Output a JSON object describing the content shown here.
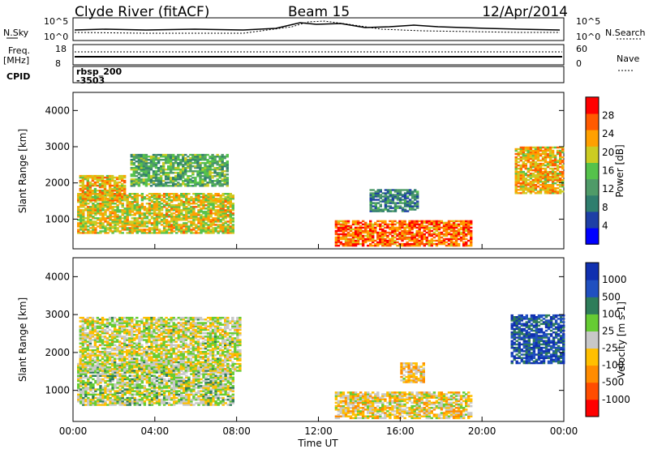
{
  "header": {
    "station": "Clyde River (fitACF)",
    "beam": "Beam 15",
    "date": "12/Apr/2014"
  },
  "params": {
    "nsky_label": "N.Sky",
    "nsearch_label": "N.Search",
    "nsky_ticks": [
      "10^5",
      "10^0"
    ],
    "nsearch_ticks": [
      "10^5",
      "10^0"
    ],
    "freq_label_top": "Freq.",
    "freq_label_bottom": "[MHz]",
    "freq_ticks": [
      "18",
      "8"
    ],
    "nave_label": "Nave",
    "nave_ticks": [
      "60",
      "0"
    ],
    "cpid_label": "CPID",
    "cpid_name": "rbsp_200",
    "cpid_number": "-3503"
  },
  "colors": {
    "power": [
      "#0000ff",
      "#1e3fa6",
      "#2f7e6e",
      "#4f9b68",
      "#55c24b",
      "#cccc22",
      "#ffa000",
      "#ff5a00",
      "#ff0000"
    ],
    "velocity": [
      "#ff0000",
      "#ff4d00",
      "#ff8c00",
      "#ffbf00",
      "#c8c8c8",
      "#66cc33",
      "#2e7d5a",
      "#2050c0",
      "#1030b0"
    ]
  },
  "chart_data": [
    {
      "type": "heatmap",
      "title": "Power",
      "ylabel": "Slant Range [km]",
      "colorbar_label": "Power [dB]",
      "colorbar_ticks": [
        "28",
        "24",
        "20",
        "16",
        "12",
        "8",
        "4"
      ],
      "x_range_hours": [
        0,
        24
      ],
      "ylim": [
        180,
        4500
      ],
      "y_ticks": [
        "4000",
        "3000",
        "2000",
        "1000"
      ],
      "x_ticks": [
        "00:00",
        "04:00",
        "08:00",
        "12:00",
        "16:00",
        "20:00",
        "00:00"
      ],
      "regions": [
        {
          "t0": 0.2,
          "t1": 7.8,
          "r0": 600,
          "r1": 1700,
          "power": 20
        },
        {
          "t0": 0.3,
          "t1": 2.5,
          "r0": 1500,
          "r1": 2200,
          "power": 22
        },
        {
          "t0": 2.8,
          "t1": 7.6,
          "r0": 1900,
          "r1": 2800,
          "power": 14
        },
        {
          "t0": 12.8,
          "t1": 19.5,
          "r0": 250,
          "r1": 950,
          "power": 26
        },
        {
          "t0": 14.5,
          "t1": 16.8,
          "r0": 1200,
          "r1": 1800,
          "power": 10
        },
        {
          "t0": 21.6,
          "t1": 24.0,
          "r0": 1700,
          "r1": 3000,
          "power": 22
        }
      ]
    },
    {
      "type": "heatmap",
      "title": "Velocity",
      "ylabel": "Slant Range [km]",
      "xlabel": "Time UT",
      "colorbar_label": "Velocity [m s-1]",
      "colorbar_ticks": [
        "1000",
        "500",
        "100",
        "25",
        "-25",
        "-100",
        "-500",
        "-1000"
      ],
      "x_range_hours": [
        0,
        24
      ],
      "ylim": [
        180,
        4500
      ],
      "y_ticks": [
        "4000",
        "3000",
        "2000",
        "1000"
      ],
      "x_ticks": [
        "00:00",
        "04:00",
        "08:00",
        "12:00",
        "16:00",
        "20:00",
        "00:00"
      ],
      "regions": [
        {
          "t0": 0.2,
          "t1": 7.8,
          "r0": 600,
          "r1": 1700,
          "velocity": 80
        },
        {
          "t0": 0.3,
          "t1": 8.2,
          "r0": 1500,
          "r1": 2900,
          "velocity": 0
        },
        {
          "t0": 12.8,
          "t1": 19.5,
          "r0": 250,
          "r1": 950,
          "velocity": -120
        },
        {
          "t0": 16.0,
          "t1": 17.2,
          "r0": 1200,
          "r1": 1700,
          "velocity": -200
        },
        {
          "t0": 21.4,
          "t1": 24.0,
          "r0": 1700,
          "r1": 3000,
          "velocity": 700
        }
      ]
    }
  ]
}
